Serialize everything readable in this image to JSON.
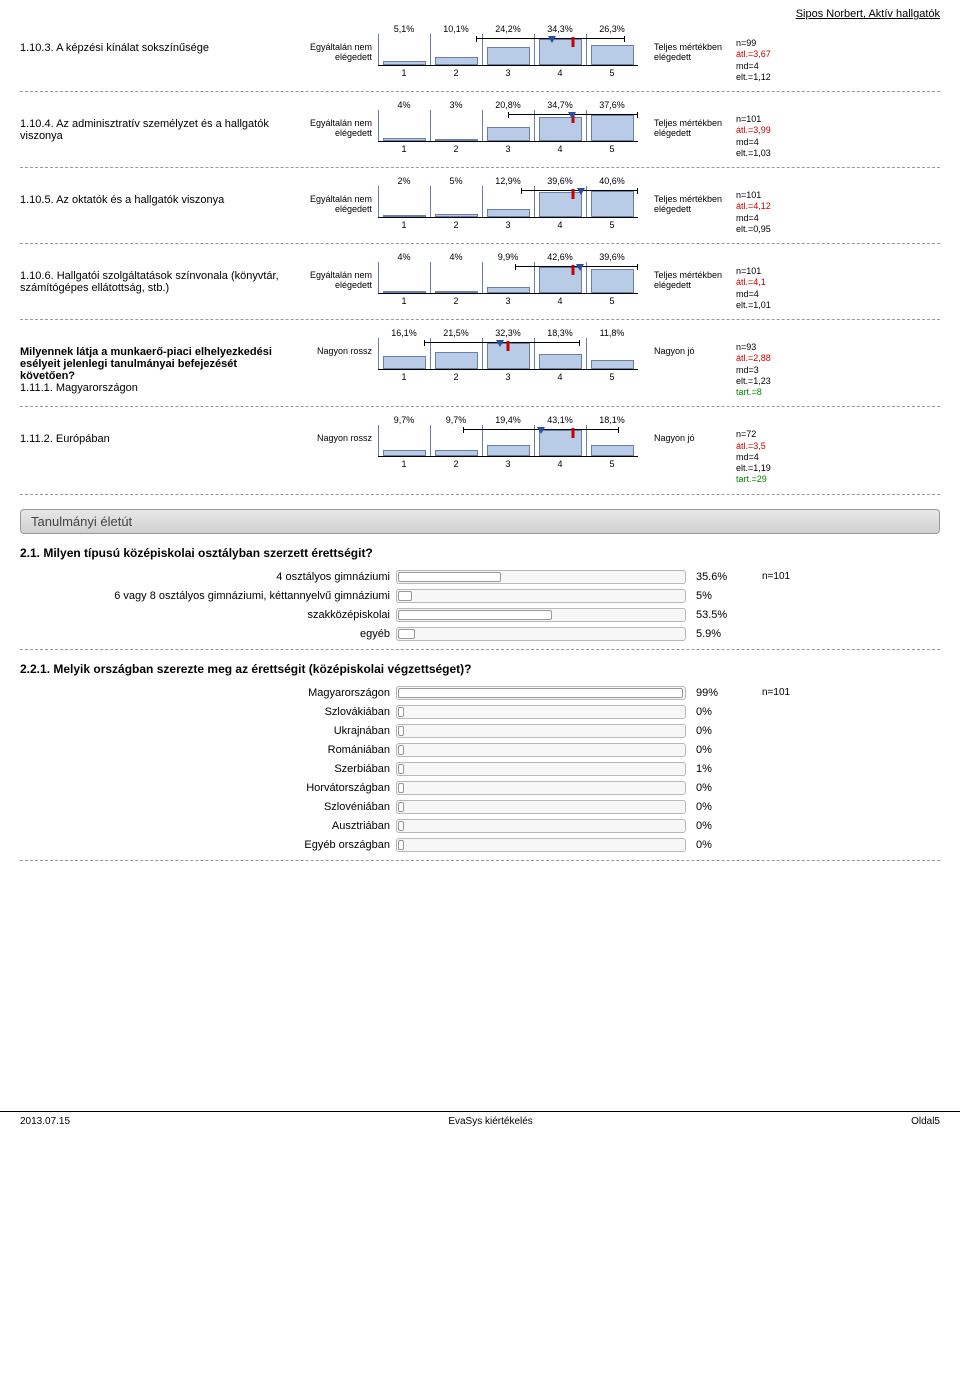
{
  "header": "Sipos Norbert, Aktív hallgatók",
  "likerts": [
    {
      "num": "1.10.3.",
      "label": "A képzési kínálat sokszínűsége",
      "bold": false,
      "left": "Egyáltalán nem elégedett",
      "right": "Teljes mértékben elégedett",
      "pcts": [
        "5,1%",
        "10,1%",
        "24,2%",
        "34,3%",
        "26,3%"
      ],
      "bars": [
        5.1,
        10.1,
        24.2,
        34.3,
        26.3
      ],
      "avg": 3.67,
      "median": 4,
      "whisk_lo": 2.5,
      "whisk_hi": 4.8,
      "stats": [
        [
          "n=99",
          0
        ],
        [
          "átl.=3,67",
          1
        ],
        [
          "md=4",
          0
        ],
        [
          "elt.=1,12",
          0
        ]
      ]
    },
    {
      "num": "1.10.4.",
      "label": "Az adminisztratív személyzet és a hallgatók viszonya",
      "bold": false,
      "left": "Egyáltalán nem elégedett",
      "right": "Teljes mértékben elégedett",
      "pcts": [
        "4%",
        "3%",
        "20,8%",
        "34,7%",
        "37,6%"
      ],
      "bars": [
        4,
        3,
        20.8,
        34.7,
        37.6
      ],
      "avg": 3.99,
      "median": 4,
      "whisk_lo": 3.0,
      "whisk_hi": 5.0,
      "stats": [
        [
          "n=101",
          0
        ],
        [
          "átl.=3,99",
          1
        ],
        [
          "md=4",
          0
        ],
        [
          "elt.=1,03",
          0
        ]
      ]
    },
    {
      "num": "1.10.5.",
      "label": "Az oktatók és a hallgatók viszonya",
      "bold": false,
      "left": "Egyáltalán nem elégedett",
      "right": "Teljes mértékben elégedett",
      "pcts": [
        "2%",
        "5%",
        "12,9%",
        "39,6%",
        "40,6%"
      ],
      "bars": [
        2,
        5,
        12.9,
        39.6,
        40.6
      ],
      "avg": 4.12,
      "median": 4,
      "whisk_lo": 3.2,
      "whisk_hi": 5.0,
      "stats": [
        [
          "n=101",
          0
        ],
        [
          "átl.=4,12",
          1
        ],
        [
          "md=4",
          0
        ],
        [
          "elt.=0,95",
          0
        ]
      ]
    },
    {
      "num": "1.10.6.",
      "label": "Hallgatói szolgáltatások színvonala (könyvtár, számítógépes ellátottság, stb.)",
      "bold": false,
      "left": "Egyáltalán nem elégedett",
      "right": "Teljes mértékben elégedett",
      "pcts": [
        "4%",
        "4%",
        "9,9%",
        "42,6%",
        "39,6%"
      ],
      "bars": [
        4,
        4,
        9.9,
        42.6,
        39.6
      ],
      "avg": 4.1,
      "median": 4,
      "whisk_lo": 3.1,
      "whisk_hi": 5.0,
      "stats": [
        [
          "n=101",
          0
        ],
        [
          "átl.=4,1",
          1
        ],
        [
          "md=4",
          0
        ],
        [
          "elt.=1,01",
          0
        ]
      ]
    },
    {
      "num": "1.11.1.",
      "label": "Milyennek látja a munkaerő-piaci elhelyezkedési esélyeit jelenlegi tanulmányai befejezését követően?",
      "sublabel": "Magyarországon",
      "bold": true,
      "left": "Nagyon rossz",
      "right": "Nagyon jó",
      "pcts": [
        "16,1%",
        "21,5%",
        "32,3%",
        "18,3%",
        "11,8%"
      ],
      "bars": [
        16.1,
        21.5,
        32.3,
        18.3,
        11.8
      ],
      "avg": 2.88,
      "median": 3,
      "whisk_lo": 1.7,
      "whisk_hi": 4.1,
      "stats": [
        [
          "n=93",
          0
        ],
        [
          "átl.=2,88",
          1
        ],
        [
          "md=3",
          0
        ],
        [
          "elt.=1,23",
          0
        ],
        [
          "tart.=8",
          2
        ]
      ]
    },
    {
      "num": "1.11.2.",
      "label": "Európában",
      "bold": false,
      "left": "Nagyon rossz",
      "right": "Nagyon jó",
      "pcts": [
        "9,7%",
        "9,7%",
        "19,4%",
        "43,1%",
        "18,1%"
      ],
      "bars": [
        9.7,
        9.7,
        19.4,
        43.1,
        18.1
      ],
      "avg": 3.5,
      "median": 4,
      "whisk_lo": 2.3,
      "whisk_hi": 4.7,
      "stats": [
        [
          "n=72",
          0
        ],
        [
          "átl.=3,5",
          1
        ],
        [
          "md=4",
          0
        ],
        [
          "elt.=1,19",
          0
        ],
        [
          "tart.=29",
          2
        ]
      ]
    }
  ],
  "section": "Tanulmányi életút",
  "q21": {
    "title": "2.1. Milyen típusú középiskolai osztályban szerzett érettségit?",
    "n": "n=101",
    "rows": [
      {
        "label": "4 osztályos gimnáziumi",
        "pct": 35.6,
        "pct_label": "35.6%"
      },
      {
        "label": "6 vagy 8 osztályos gimnáziumi, kéttannyelvű gimnáziumi",
        "pct": 5,
        "pct_label": "5%"
      },
      {
        "label": "szakközépiskolai",
        "pct": 53.5,
        "pct_label": "53.5%"
      },
      {
        "label": "egyéb",
        "pct": 5.9,
        "pct_label": "5.9%"
      }
    ]
  },
  "q221": {
    "title": "2.2.1. Melyik országban szerezte meg az érettségit (középiskolai végzettséget)?",
    "n": "n=101",
    "rows": [
      {
        "label": "Magyarországon",
        "pct": 99,
        "pct_label": "99%"
      },
      {
        "label": "Szlovákiában",
        "pct": 0,
        "pct_label": "0%"
      },
      {
        "label": "Ukrajnában",
        "pct": 0,
        "pct_label": "0%"
      },
      {
        "label": "Romániában",
        "pct": 0,
        "pct_label": "0%"
      },
      {
        "label": "Szerbiában",
        "pct": 1,
        "pct_label": "1%"
      },
      {
        "label": "Horvátországban",
        "pct": 0,
        "pct_label": "0%"
      },
      {
        "label": "Szlovéniában",
        "pct": 0,
        "pct_label": "0%"
      },
      {
        "label": "Ausztriában",
        "pct": 0,
        "pct_label": "0%"
      },
      {
        "label": "Egyéb országban",
        "pct": 0,
        "pct_label": "0%"
      }
    ]
  },
  "footer": {
    "left": "2013.07.15",
    "mid": "EvaSys kiértékelés",
    "right": "Oldal5"
  }
}
